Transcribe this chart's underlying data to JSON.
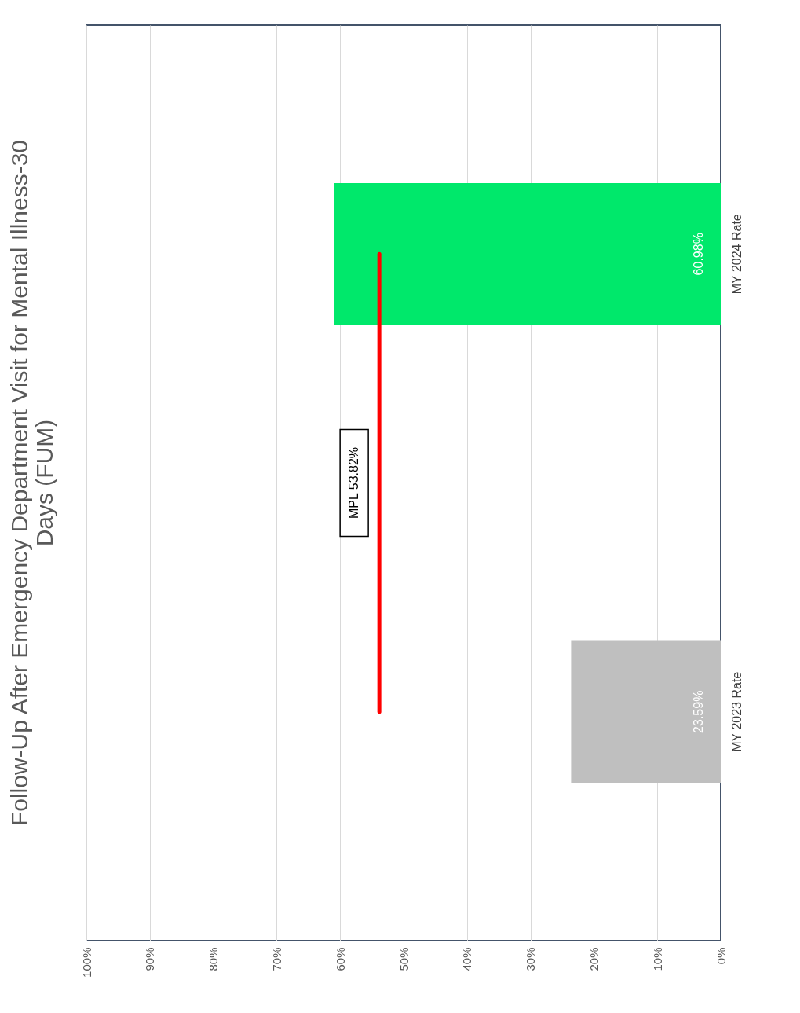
{
  "chart_data": {
    "type": "bar",
    "orientation": "horizontal",
    "title": "Follow-Up After Emergency Department Visit for Mental Illness-30 Days (FUM)",
    "categories": [
      "MY 2024 Rate",
      "MY 2023 Rate"
    ],
    "values": [
      60.98,
      23.59
    ],
    "colors": [
      "#00e86b",
      "#bfbfbf"
    ],
    "value_labels": [
      "60.98%",
      "23.59%"
    ],
    "xlim": [
      100,
      0
    ],
    "xticks": [
      {
        "value": 0,
        "label": "0%"
      },
      {
        "value": 10,
        "label": "10%"
      },
      {
        "value": 20,
        "label": "20%"
      },
      {
        "value": 30,
        "label": "30%"
      },
      {
        "value": 40,
        "label": "40%"
      },
      {
        "value": 50,
        "label": "50%"
      },
      {
        "value": 60,
        "label": "60%"
      },
      {
        "value": 70,
        "label": "70%"
      },
      {
        "value": 80,
        "label": "80%"
      },
      {
        "value": 90,
        "label": "90%"
      },
      {
        "value": 100,
        "label": "100%"
      }
    ],
    "ref_lines": [
      {
        "axis": "x",
        "value": 53.82,
        "label": "MPL 53.82%",
        "color": "#ff0000"
      }
    ],
    "grid": "x"
  }
}
